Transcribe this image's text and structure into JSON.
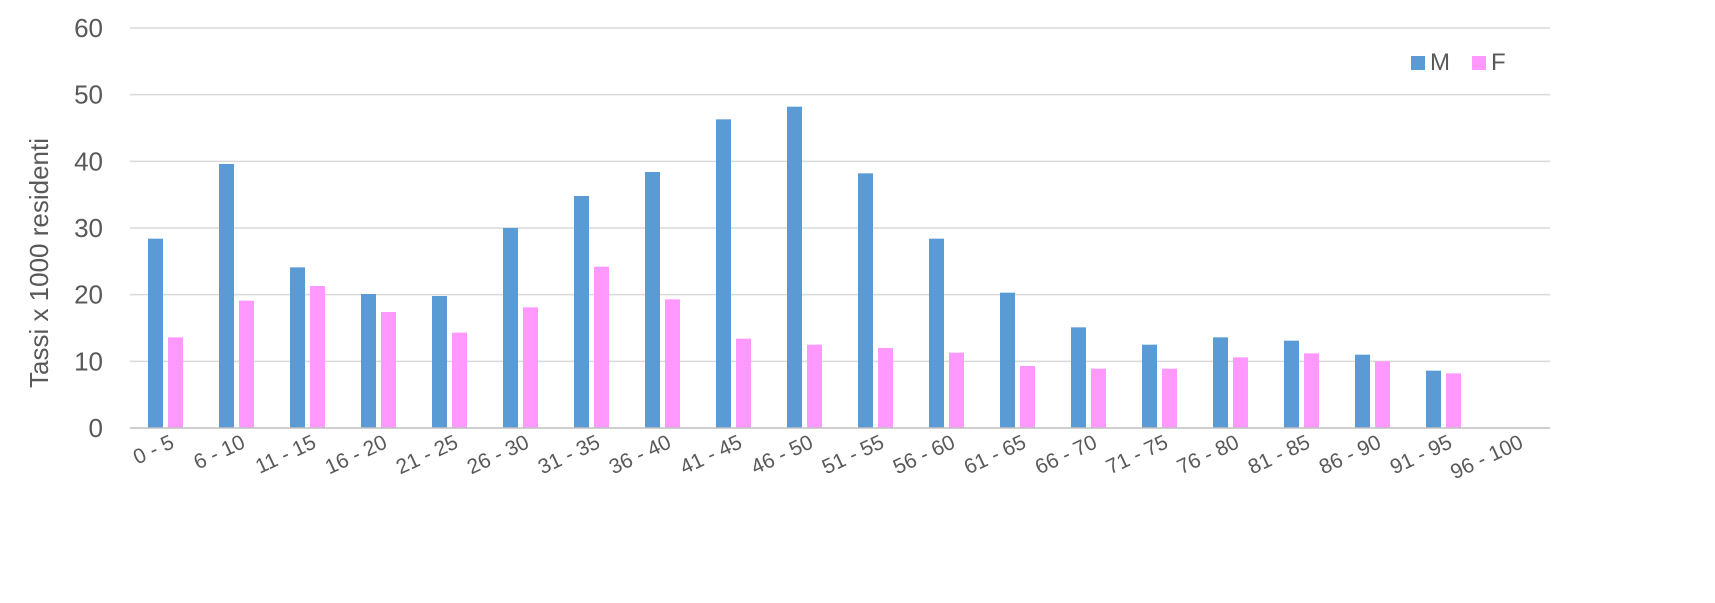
{
  "chart_data": {
    "type": "bar",
    "title": "",
    "xlabel": "",
    "ylabel": "Tassi x 1000 residenti",
    "ylim": [
      0,
      60
    ],
    "yticks": [
      0,
      10,
      20,
      30,
      40,
      50,
      60
    ],
    "grid": true,
    "legend_position": "top-right",
    "categories": [
      "0 - 5",
      "6 - 10",
      "11 - 15",
      "16 - 20",
      "21 - 25",
      "26 - 30",
      "31 - 35",
      "36 - 40",
      "41 - 45",
      "46 - 50",
      "51 - 55",
      "56 - 60",
      "61 - 65",
      "66 - 70",
      "71 - 75",
      "76 - 80",
      "81 - 85",
      "86 - 90",
      "91 - 95",
      "96 - 100"
    ],
    "series": [
      {
        "name": "M",
        "color": "#5b9bd5",
        "values": [
          28.4,
          39.6,
          24.1,
          20.1,
          19.8,
          30.0,
          34.8,
          38.4,
          46.3,
          48.2,
          38.2,
          28.4,
          20.3,
          15.1,
          12.5,
          13.6,
          13.1,
          11.0,
          8.6,
          null
        ]
      },
      {
        "name": "F",
        "color": "#ff99ff",
        "values": [
          13.6,
          19.1,
          21.3,
          17.4,
          14.3,
          18.1,
          24.2,
          19.3,
          13.4,
          12.5,
          12.0,
          11.3,
          9.3,
          8.9,
          8.9,
          10.6,
          11.2,
          10.0,
          8.2,
          null
        ]
      }
    ]
  }
}
